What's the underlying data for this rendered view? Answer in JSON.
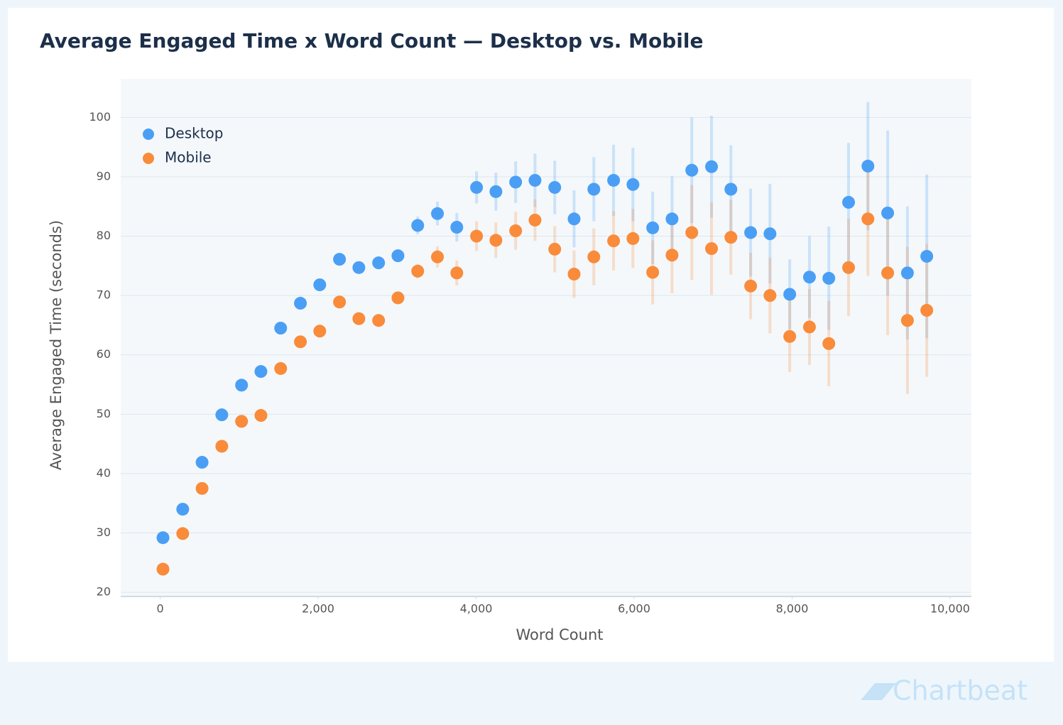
{
  "chart_data": {
    "type": "scatter",
    "title": "Average Engaged Time x Word Count — Desktop vs. Mobile",
    "x_label": "Word Count",
    "y_label": "Average Engaged Time (seconds)",
    "watermark": "Chartbeat",
    "legend": "upper left",
    "grid": true,
    "xlim": [
      -500,
      10270
    ],
    "ylim": [
      19.3,
      106.5
    ],
    "xticks": [
      0,
      {
        "value": 2000,
        "label": "2,000"
      },
      {
        "value": 4000,
        "label": "4,000"
      },
      {
        "value": 6000,
        "label": "6,000"
      },
      {
        "value": 8000,
        "label": "8,000"
      },
      {
        "value": 10000,
        "label": "10,000"
      }
    ],
    "yticks": [
      20,
      30,
      40,
      50,
      60,
      70,
      80,
      90,
      100
    ],
    "x": [
      35,
      285,
      530,
      780,
      1030,
      1275,
      1525,
      1775,
      2020,
      2270,
      2515,
      2765,
      3010,
      3260,
      3510,
      3755,
      4005,
      4250,
      4500,
      4745,
      4995,
      5240,
      5490,
      5740,
      5985,
      6235,
      6480,
      6730,
      6980,
      7225,
      7475,
      7720,
      7970,
      8220,
      8465,
      8715,
      8960,
      9210,
      9460,
      9705
    ],
    "series": [
      {
        "name": "Desktop",
        "color": "#4a9ff5",
        "values": [
          29.2,
          34.0,
          41.9,
          49.9,
          54.9,
          57.2,
          64.5,
          68.7,
          71.8,
          76.1,
          74.7,
          75.5,
          76.7,
          81.8,
          83.8,
          81.5,
          88.2,
          87.5,
          89.1,
          89.4,
          88.2,
          82.9,
          87.9,
          89.4,
          88.7,
          81.4,
          82.9,
          91.1,
          91.7,
          87.9,
          80.6,
          80.4,
          70.2,
          73.1,
          72.9,
          85.7,
          91.8,
          83.9,
          73.8,
          76.6
        ],
        "errors": [
          1,
          1,
          1,
          1,
          1,
          1,
          1,
          1,
          1,
          1,
          1,
          1,
          1,
          1.5,
          2,
          2.4,
          2.7,
          3.2,
          3.5,
          4.5,
          4.5,
          4.8,
          5.4,
          6,
          6.2,
          6.1,
          7.2,
          8.9,
          8.6,
          7.4,
          7.4,
          8.4,
          5.9,
          6.9,
          8.7,
          10,
          10.8,
          13.9,
          11.2,
          13.8
        ]
      },
      {
        "name": "Mobile",
        "color": "#f98b3a",
        "values": [
          23.9,
          29.9,
          37.5,
          44.6,
          48.8,
          49.8,
          57.7,
          62.2,
          64.0,
          68.9,
          66.1,
          65.8,
          69.6,
          74.1,
          76.5,
          73.8,
          80.0,
          79.3,
          80.9,
          82.7,
          77.8,
          73.6,
          76.5,
          79.2,
          79.6,
          73.9,
          76.8,
          80.6,
          77.9,
          79.8,
          71.6,
          70.0,
          63.1,
          64.7,
          61.9,
          74.7,
          82.9,
          73.8,
          65.8,
          67.5
        ],
        "errors": [
          1,
          1,
          1,
          1,
          1,
          1,
          1,
          1,
          1,
          1,
          1,
          1,
          1,
          1.2,
          1.8,
          2.1,
          2.5,
          3,
          3.2,
          3.5,
          3.9,
          4,
          4.8,
          5,
          5,
          5.4,
          6.4,
          8,
          7.8,
          6.3,
          5.6,
          6.4,
          6,
          6.4,
          7.2,
          8.2,
          9.6,
          10.5,
          12.4,
          11.2
        ]
      }
    ]
  }
}
